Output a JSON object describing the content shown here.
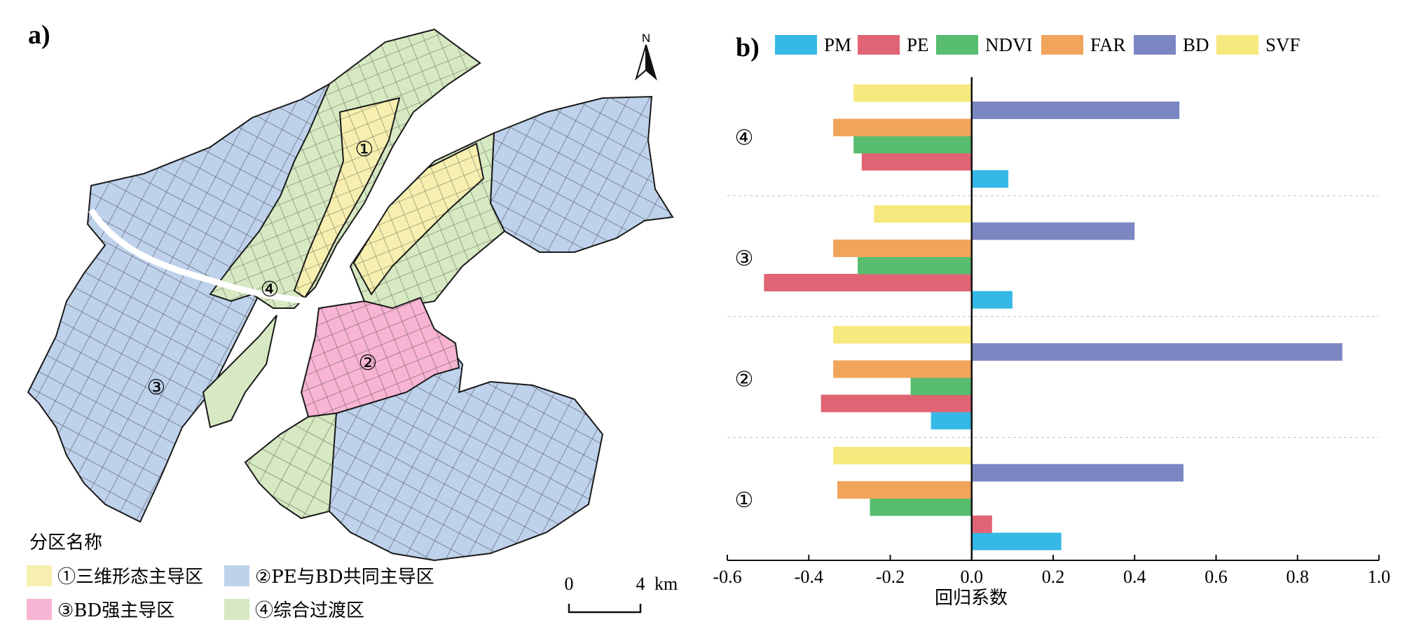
{
  "panel_a": {
    "label": "a)",
    "north_label": "N",
    "map_zone_labels": [
      "①",
      "②",
      "③",
      "④"
    ],
    "scale": {
      "start": "0",
      "end": "4",
      "unit": "km"
    },
    "legend_title": "分区名称",
    "legend_items": [
      {
        "label": "①三维形态主导区",
        "color": "#f6efb0"
      },
      {
        "label": "②PE与BD共同主导区",
        "color": "#bfd2ec"
      },
      {
        "label": "③BD强主导区",
        "color": "#f7b5d3"
      },
      {
        "label": "④综合过渡区",
        "color": "#d6e9c2"
      }
    ]
  },
  "chart_data": {
    "type": "bar",
    "orientation": "horizontal",
    "panel_label": "b)",
    "title": "",
    "xlabel": "回归系数",
    "ylabel": "",
    "xlim": [
      -0.6,
      1.0
    ],
    "xticks": [
      -0.6,
      -0.4,
      -0.2,
      0.0,
      0.2,
      0.4,
      0.6,
      0.8,
      1.0
    ],
    "xtick_labels": [
      "-0.6",
      "-0.4",
      "-0.2",
      "0.0",
      "0.2",
      "0.4",
      "0.6",
      "0.8",
      "1.0"
    ],
    "categories": [
      "④",
      "③",
      "②",
      "①"
    ],
    "series": [
      {
        "name": "PM",
        "color": "#35b8e6",
        "values": [
          0.09,
          0.1,
          -0.1,
          0.22
        ]
      },
      {
        "name": "PE",
        "color": "#e06474",
        "values": [
          -0.27,
          -0.51,
          -0.37,
          0.05
        ]
      },
      {
        "name": "NDVI",
        "color": "#58bd6e",
        "values": [
          -0.29,
          -0.28,
          -0.15,
          -0.25
        ]
      },
      {
        "name": "FAR",
        "color": "#f1a55c",
        "values": [
          -0.34,
          -0.34,
          -0.34,
          -0.33
        ]
      },
      {
        "name": "BD",
        "color": "#7c86c2",
        "values": [
          0.51,
          0.4,
          0.91,
          0.52
        ]
      },
      {
        "name": "SVF",
        "color": "#f6e97e",
        "values": [
          -0.29,
          -0.24,
          -0.34,
          -0.34
        ]
      }
    ],
    "legend_position": "top",
    "grid": "dashed horizontal separators between groups"
  }
}
